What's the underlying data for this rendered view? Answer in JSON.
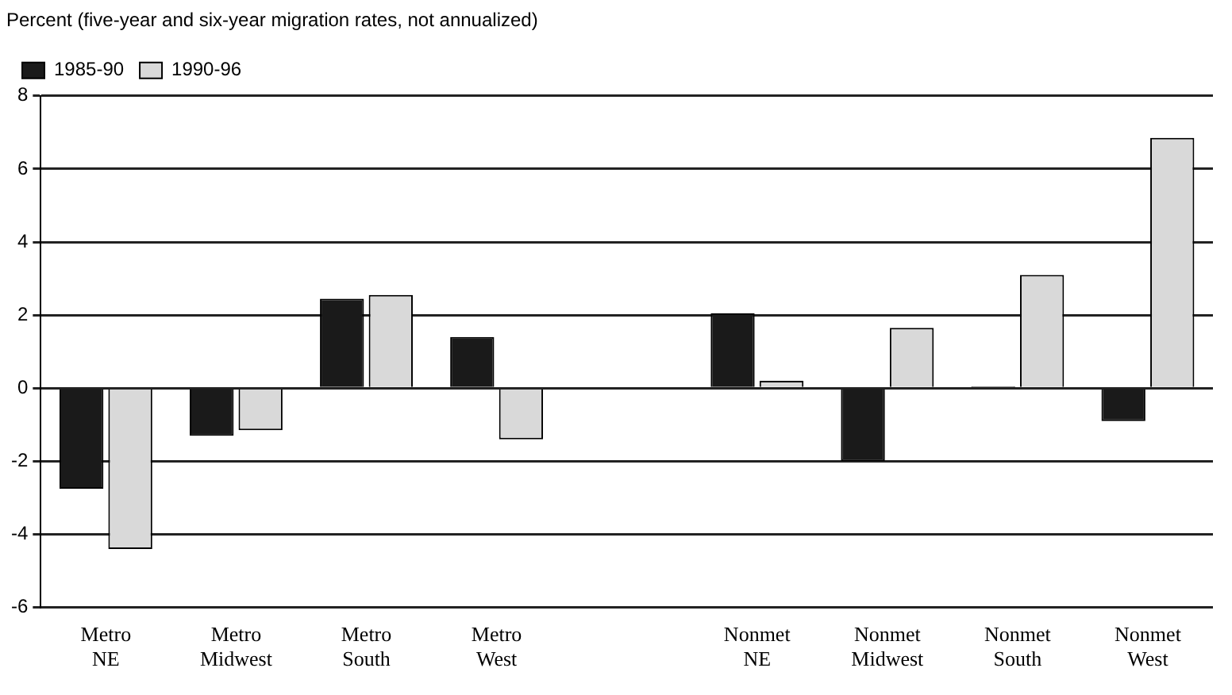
{
  "chart_data": {
    "type": "bar",
    "ylabel": "Percent (five-year and six-year migration rates, not annualized)",
    "categories": [
      "Metro NE",
      "Metro Midwest",
      "Metro South",
      "Metro West",
      null,
      "Nonmet NE",
      "Nonmet Midwest",
      "Nonmet South",
      "Nonmet West"
    ],
    "series": [
      {
        "name": "1985-90",
        "color": "#1a1a1a",
        "values": [
          -2.75,
          -1.3,
          2.45,
          1.4,
          null,
          2.05,
          -2.0,
          0.05,
          -0.9
        ]
      },
      {
        "name": "1990-96",
        "color": "#d9d9d9",
        "values": [
          -4.4,
          -1.15,
          2.55,
          -1.4,
          null,
          0.2,
          1.65,
          3.1,
          6.85
        ]
      }
    ],
    "ylim": [
      -6,
      8
    ],
    "yticks": [
      -6,
      -4,
      -2,
      0,
      2,
      4,
      6,
      8
    ],
    "grid": "y",
    "legend": "top left"
  }
}
